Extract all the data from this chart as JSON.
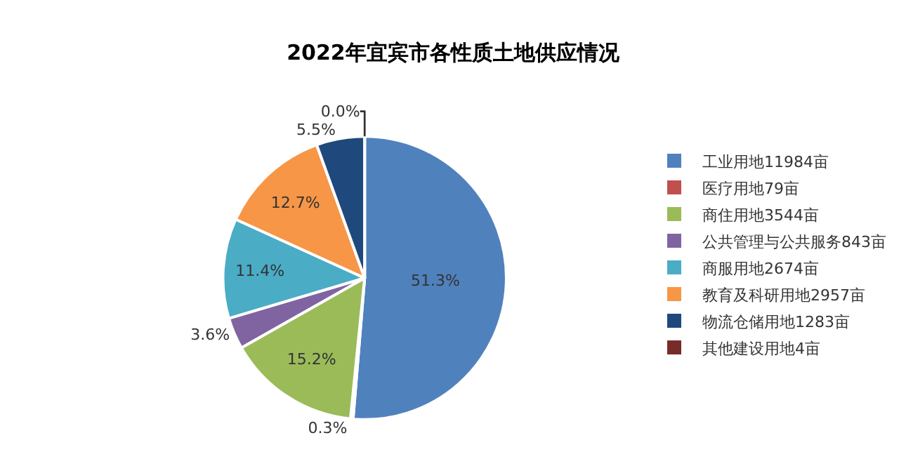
{
  "chart_data": {
    "type": "pie",
    "title": "2022年宜宾市各性质土地供应情况",
    "categories": [
      "工业用地11984亩",
      "医疗用地79亩",
      "商住用地3544亩",
      "公共管理与公共服务843亩",
      "商服用地2674亩",
      "教育及科研用地2957亩",
      "物流仓储用地1283亩",
      "其他建设用地4亩"
    ],
    "values": [
      51.3,
      0.3,
      15.2,
      3.6,
      11.4,
      12.7,
      5.5,
      0.0
    ],
    "value_labels": [
      "51.3%",
      "0.3%",
      "15.2%",
      "3.6%",
      "11.4%",
      "12.7%",
      "5.5%",
      "0.0%"
    ],
    "colors": [
      "#4f81bd",
      "#c0504d",
      "#9bbb59",
      "#8064a2",
      "#4bacc6",
      "#f79646",
      "#1f497d",
      "#772c2a"
    ],
    "legend": "right"
  }
}
